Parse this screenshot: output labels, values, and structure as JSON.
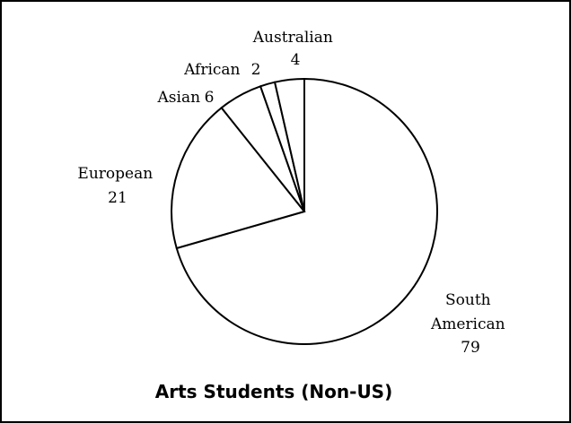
{
  "chart_data": {
    "type": "pie",
    "title": "Arts Students (Non-US)",
    "slices": [
      {
        "label": "South American",
        "value": 79
      },
      {
        "label": "European",
        "value": 21
      },
      {
        "label": "Asian",
        "value": 6
      },
      {
        "label": "African",
        "value": 2
      },
      {
        "label": "Australian",
        "value": 4
      }
    ],
    "colors": {
      "slice_fill": "#ffffff",
      "stroke": "#000000",
      "background": "#ffffff"
    },
    "legend": "none"
  }
}
